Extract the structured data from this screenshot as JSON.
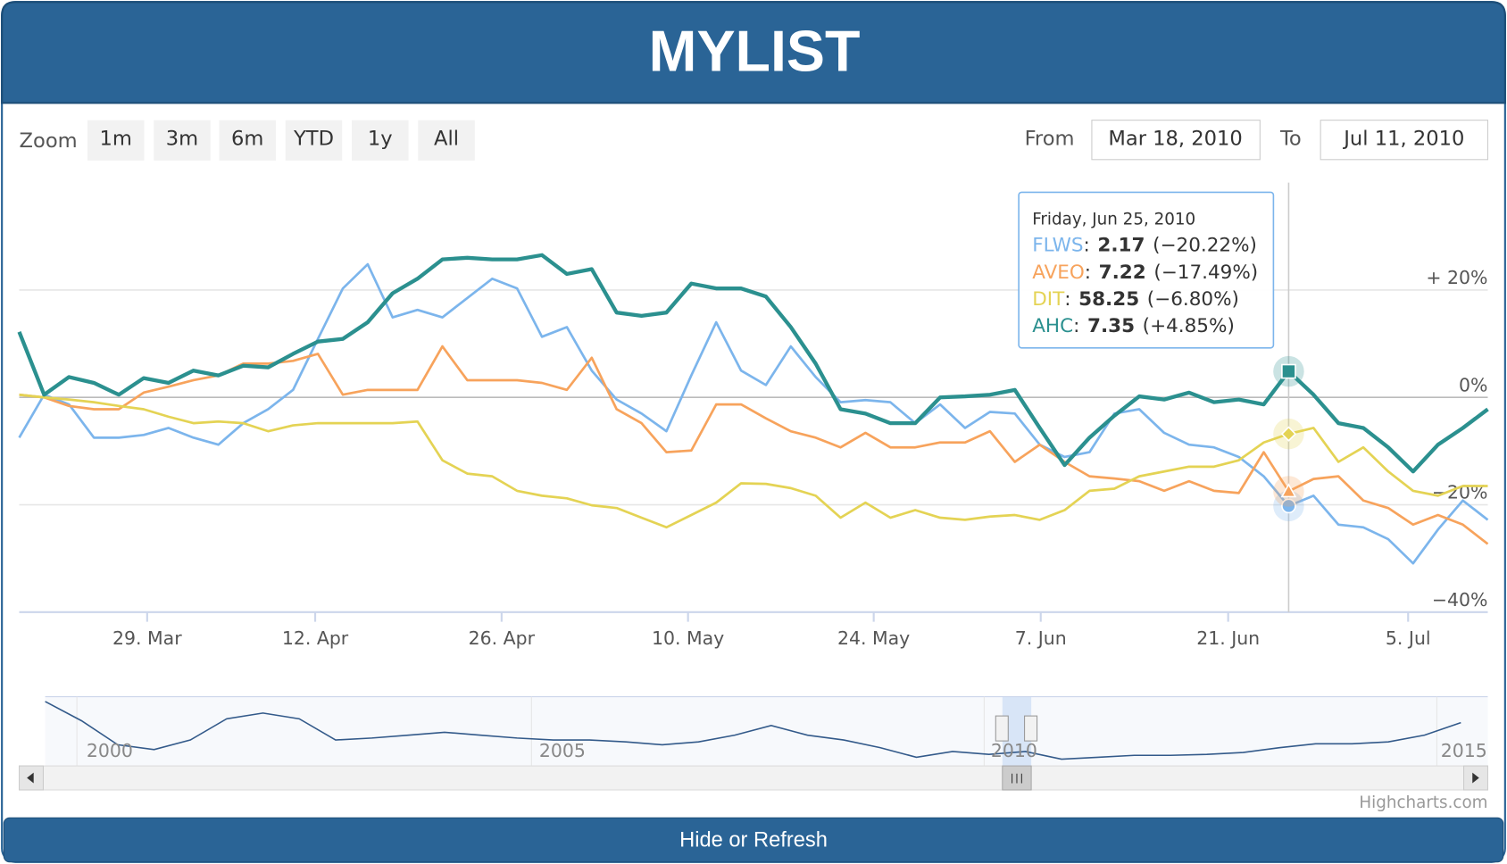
{
  "header": {
    "title": "MYLIST"
  },
  "range_selector": {
    "label": "Zoom",
    "buttons": [
      "1m",
      "3m",
      "6m",
      "YTD",
      "1y",
      "All"
    ],
    "from_label": "From",
    "from": "Mar 18, 2010",
    "to_label": "To",
    "to": "Jul 11, 2010"
  },
  "chart_data": {
    "type": "line",
    "x": [
      0,
      1,
      2,
      3,
      4,
      5,
      6,
      7,
      8,
      9,
      10,
      11,
      12,
      13,
      14,
      15,
      16,
      17,
      18,
      19,
      20,
      21,
      22,
      23,
      24,
      25,
      26,
      27,
      28,
      29,
      30,
      31,
      32,
      33,
      34,
      35,
      36,
      37,
      38,
      39,
      40,
      41,
      42,
      43,
      44,
      45,
      46,
      47,
      48,
      49,
      50,
      51,
      52,
      53,
      54,
      55,
      56,
      57,
      58,
      59
    ],
    "xlim": [
      0,
      59
    ],
    "xticks": [
      {
        "value": 5.14,
        "label": "29. Mar"
      },
      {
        "value": 11.89,
        "label": "12. Apr"
      },
      {
        "value": 19.38,
        "label": "26. Apr"
      },
      {
        "value": 26.87,
        "label": "10. May"
      },
      {
        "value": 34.33,
        "label": "24. May"
      },
      {
        "value": 41.04,
        "label": "7. Jun"
      },
      {
        "value": 48.57,
        "label": "21. Jun"
      },
      {
        "value": 55.8,
        "label": "5. Jul"
      }
    ],
    "ylim": [
      -40,
      40
    ],
    "yticks": [
      {
        "value": -40,
        "label": "−40%"
      },
      {
        "value": -20,
        "label": "−20%"
      },
      {
        "value": 0,
        "label": "0%"
      },
      {
        "value": 20,
        "label": "+ 20%"
      }
    ],
    "grid": true,
    "series": [
      {
        "name": "FLWS",
        "color": "#7cb5ec",
        "marker": "circle",
        "values": [
          -7.5,
          0.5,
          -1.3,
          -7.5,
          -7.5,
          -7.0,
          -5.7,
          -7.5,
          -8.8,
          -4.8,
          -2.2,
          1.4,
          10.9,
          20.3,
          24.8,
          14.9,
          16.3,
          14.9,
          18.5,
          22.1,
          20.3,
          11.3,
          13.1,
          5.0,
          -0.4,
          -3.0,
          -6.3,
          4.1,
          14.0,
          5.0,
          2.3,
          9.5,
          3.8,
          -0.9,
          -0.5,
          -0.9,
          -4.8,
          -1.3,
          -5.7,
          -2.7,
          -3.0,
          -8.8,
          -11.1,
          -10.2,
          -3.0,
          -2.2,
          -6.6,
          -8.8,
          -9.3,
          -11.1,
          -14.7,
          -20.22,
          -18.3,
          -23.7,
          -24.2,
          -26.4,
          -30.9,
          -24.6,
          -19.2,
          -22.8
        ]
      },
      {
        "name": "AVEO",
        "color": "#f7a35c",
        "marker": "triangle",
        "values": [
          0.5,
          0,
          -1.6,
          -2.2,
          -2.2,
          0.9,
          2.0,
          3.2,
          4.1,
          6.3,
          6.3,
          6.8,
          8.1,
          0.5,
          1.4,
          1.4,
          1.4,
          9.5,
          3.2,
          3.2,
          3.2,
          2.7,
          1.4,
          7.4,
          -2.2,
          -4.8,
          -10.2,
          -9.9,
          -1.3,
          -1.3,
          -3.9,
          -6.3,
          -7.5,
          -9.3,
          -6.6,
          -9.3,
          -9.3,
          -8.4,
          -8.4,
          -6.3,
          -12.0,
          -8.8,
          -12.0,
          -14.7,
          -15.1,
          -15.6,
          -17.4,
          -15.6,
          -17.4,
          -17.8,
          -10.2,
          -17.49,
          -15.2,
          -14.7,
          -19.2,
          -20.6,
          -23.7,
          -21.9,
          -23.7,
          -27.3
        ]
      },
      {
        "name": "DIT",
        "color": "#e4d354",
        "marker": "diamond",
        "values": [
          0.5,
          0,
          -0.4,
          -0.9,
          -1.6,
          -2.2,
          -3.6,
          -4.8,
          -4.5,
          -4.8,
          -6.3,
          -5.2,
          -4.8,
          -4.8,
          -4.8,
          -4.8,
          -4.5,
          -11.7,
          -14.2,
          -14.7,
          -17.4,
          -18.3,
          -18.8,
          -20.1,
          -20.6,
          -22.4,
          -24.2,
          -21.9,
          -19.6,
          -16.0,
          -16.1,
          -16.9,
          -18.3,
          -22.4,
          -19.6,
          -22.4,
          -21.0,
          -22.4,
          -22.8,
          -22.2,
          -21.9,
          -22.8,
          -21.0,
          -17.4,
          -17.0,
          -14.7,
          -13.8,
          -12.9,
          -12.9,
          -11.7,
          -8.4,
          -6.8,
          -5.7,
          -12.0,
          -9.3,
          -13.8,
          -17.4,
          -18.3,
          -16.5,
          -16.5
        ]
      },
      {
        "name": "AHC",
        "color": "#2b908f",
        "marker": "square",
        "width": 4,
        "values": [
          12.2,
          0.5,
          3.8,
          2.7,
          0.5,
          3.6,
          2.7,
          5.0,
          4.1,
          5.9,
          5.6,
          8.1,
          10.4,
          10.9,
          14.0,
          19.4,
          22.1,
          25.7,
          26.0,
          25.7,
          25.7,
          26.5,
          23.0,
          23.9,
          15.8,
          15.2,
          15.8,
          21.2,
          20.3,
          20.3,
          18.8,
          13.1,
          6.3,
          -2.2,
          -3.0,
          -4.8,
          -4.8,
          0,
          0.2,
          0.5,
          1.4,
          -5.7,
          -12.6,
          -7.5,
          -3.4,
          0.2,
          -0.4,
          0.9,
          -0.9,
          -0.4,
          -1.3,
          4.85,
          0.5,
          -4.8,
          -5.7,
          -9.3,
          -13.8,
          -8.8,
          -5.7,
          -2.2
        ]
      }
    ],
    "tooltip": {
      "x": 51,
      "date": "Friday, Jun 25, 2010",
      "separator": ":",
      "rows": [
        {
          "price": 2.17,
          "change": {
            "value": -20.22,
            "label": "(−20.22%)"
          }
        },
        {
          "price": 7.22,
          "change": {
            "value": -17.49,
            "label": "(−17.49%)"
          }
        },
        {
          "price": 58.25,
          "change": {
            "value": -6.8,
            "label": "(−6.80%)"
          }
        },
        {
          "price": 7.35,
          "change": {
            "value": 4.85,
            "label": "(+4.85%)"
          }
        }
      ]
    }
  },
  "navigator": {
    "labels": [
      "2000",
      "2005",
      "2010",
      "2015"
    ],
    "values": [
      67,
      47,
      22,
      17,
      27,
      49,
      55,
      49,
      27,
      29,
      32,
      35,
      32,
      29,
      27,
      27,
      25,
      22,
      25,
      32,
      42,
      32,
      27,
      19,
      9,
      15,
      12,
      15,
      7,
      9,
      11,
      11,
      12,
      14,
      19,
      23,
      23,
      25,
      32,
      45
    ]
  },
  "credits": "Highcharts.com",
  "footer_button": "Hide or Refresh"
}
